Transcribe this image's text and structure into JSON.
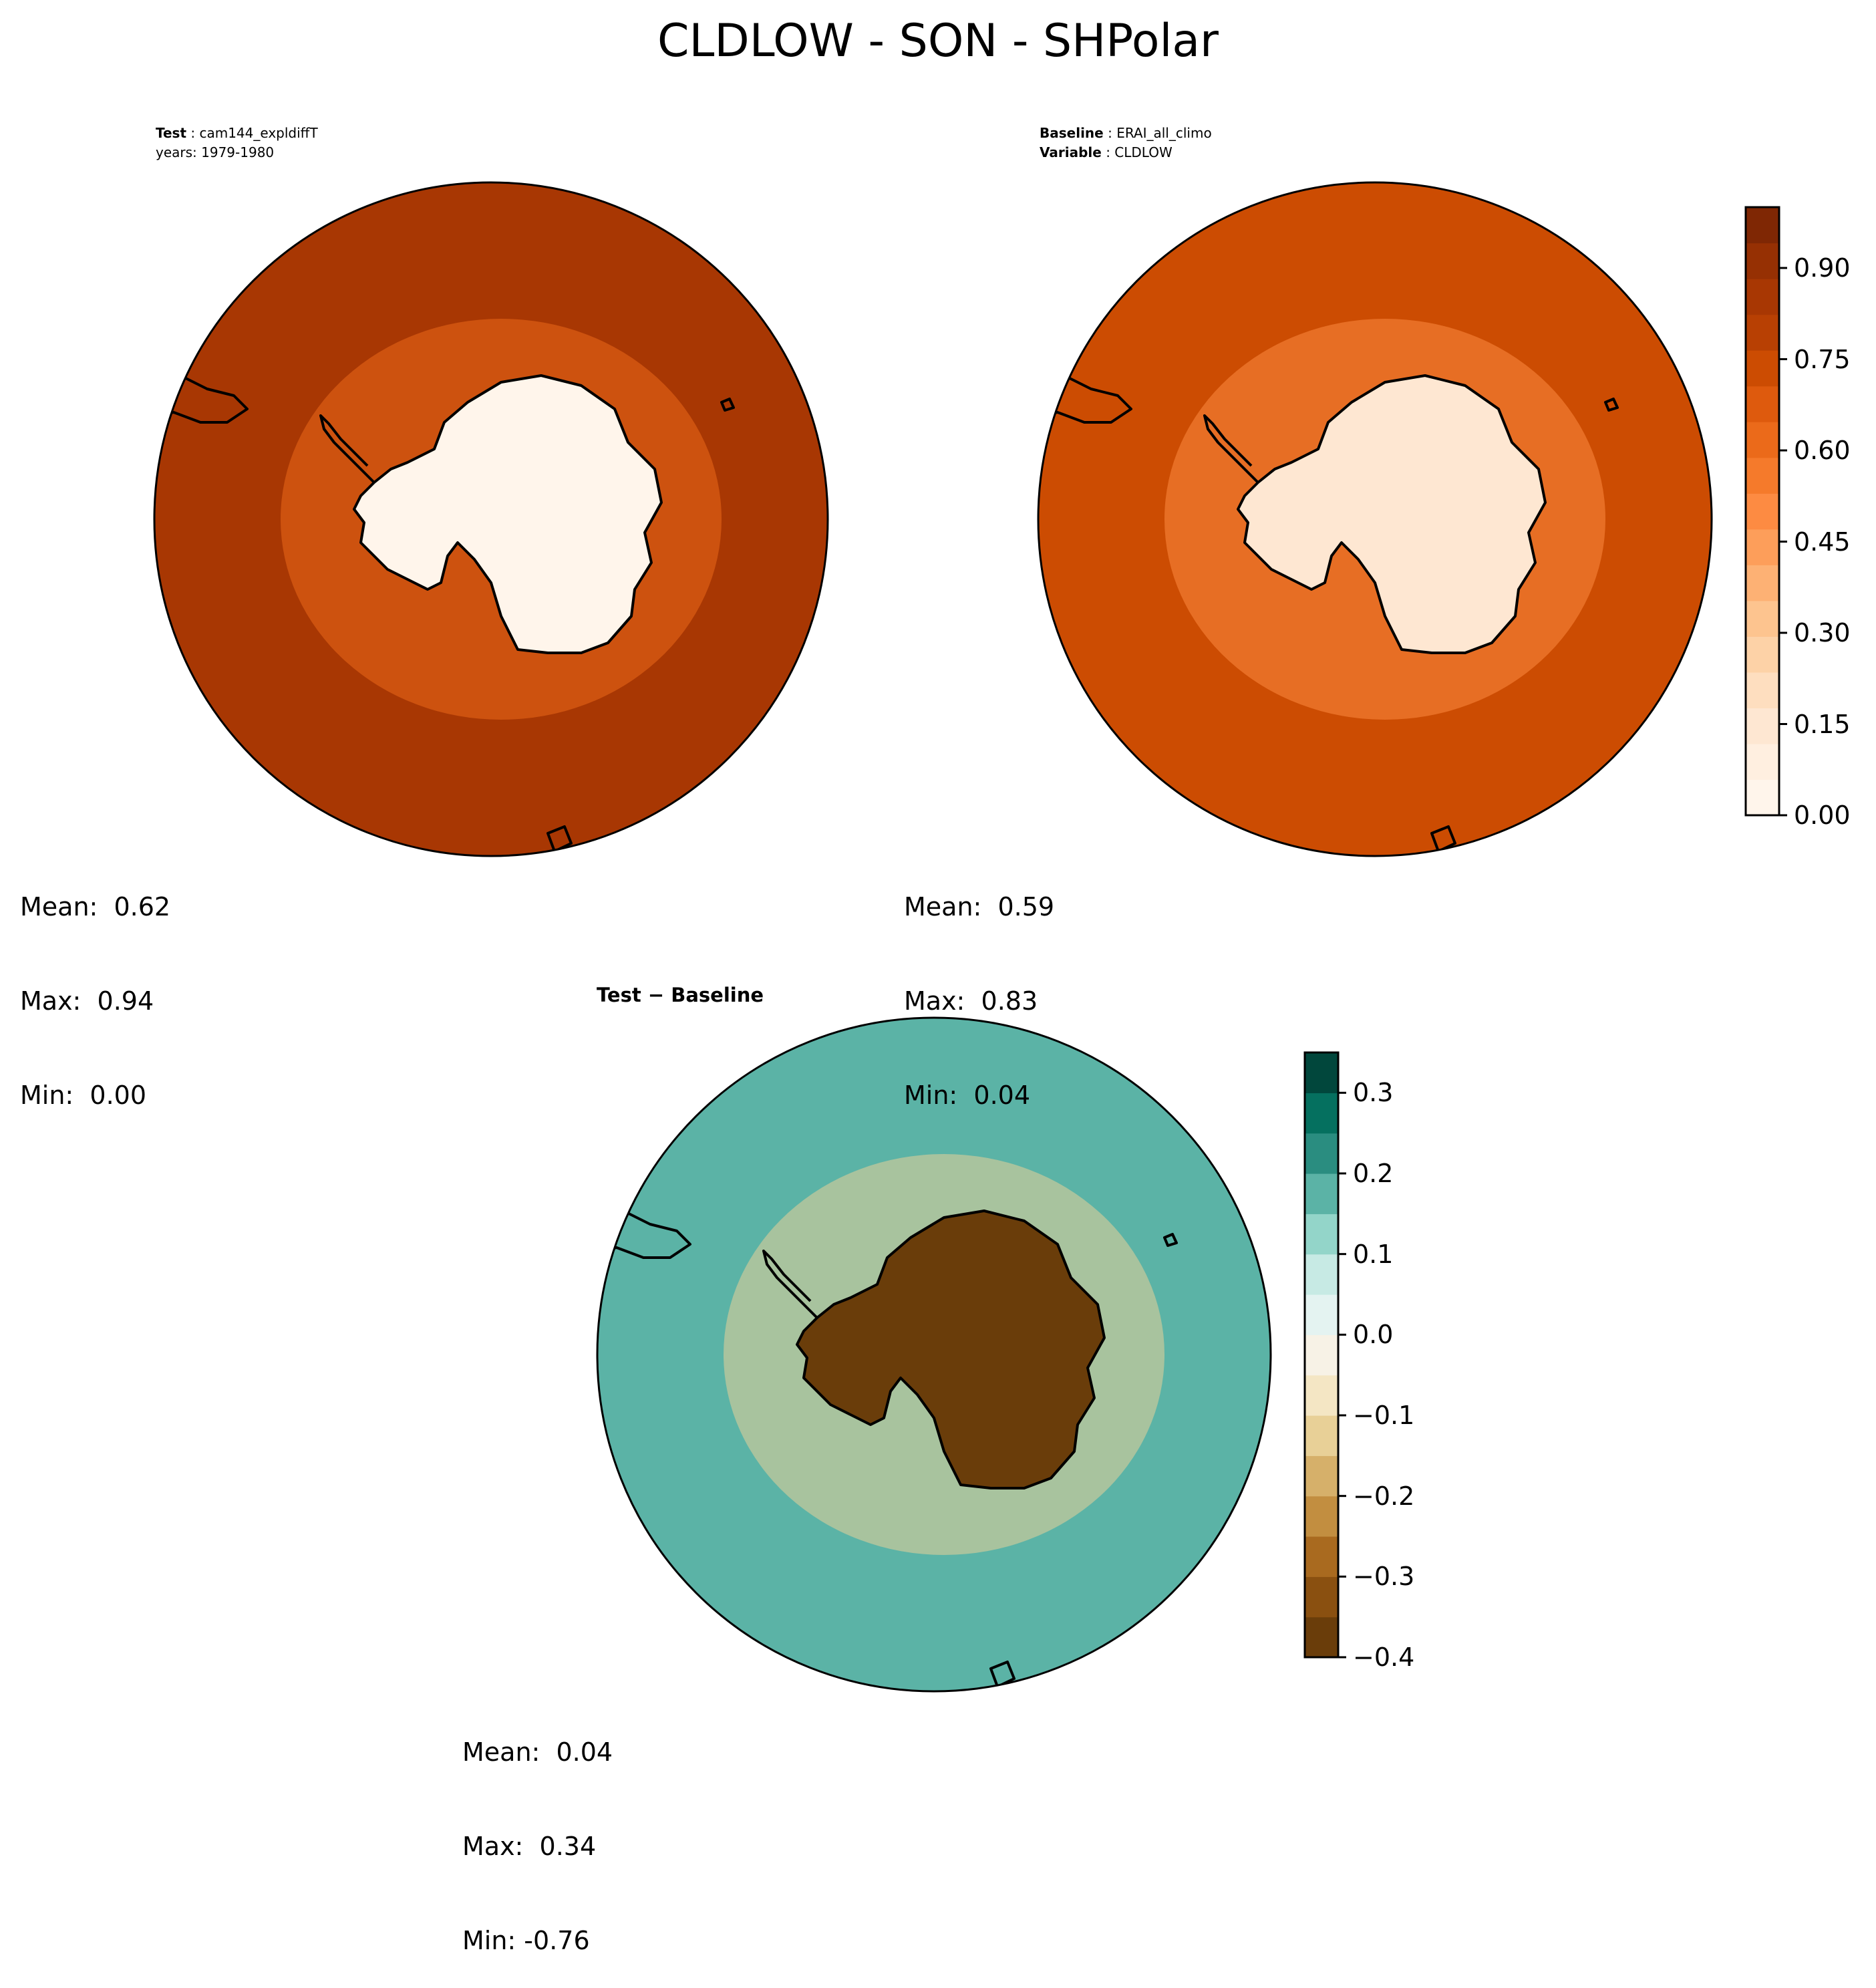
{
  "figure": {
    "title": "CLDLOW - SON - SHPolar"
  },
  "panels": {
    "test": {
      "label_bold": "Test",
      "label_value": "cam144_expldiffT",
      "line2": "years: 1979-1980",
      "stats": {
        "mean": "Mean:  0.62",
        "max": "Max:  0.94",
        "min": "Min:  0.00"
      },
      "field": {
        "ocean_level": 0.86,
        "land_level": 0.02,
        "ring_level": 0.6
      }
    },
    "baseline": {
      "label_bold": "Baseline",
      "label_value": "ERAI_all_climo",
      "line2_bold": "Variable",
      "line2_value": "CLDLOW",
      "stats": {
        "mean": "Mean:  0.59",
        "max": "Max:  0.83",
        "min": "Min:  0.04"
      },
      "field": {
        "ocean_level": 0.72,
        "land_level": 0.12,
        "ring_level": 0.5
      }
    },
    "difference": {
      "label": "Test − Baseline",
      "stats": {
        "mean": "Mean:  0.04",
        "max": "Max:  0.34",
        "min": "Min: -0.76"
      },
      "field": {
        "ocean_level": 0.15,
        "land_level": -0.76,
        "ring_level": -0.15
      }
    }
  },
  "colorbars": {
    "absolute": {
      "colormap": "Oranges",
      "range": [
        0,
        1
      ],
      "ticks": [
        "0.00",
        "0.15",
        "0.30",
        "0.45",
        "0.60",
        "0.75",
        "0.90"
      ],
      "tick_values": [
        0,
        0.15,
        0.3,
        0.45,
        0.6,
        0.75,
        0.9
      ],
      "colors": [
        "#fff5eb",
        "#ffefe0",
        "#fee7d2",
        "#fedebf",
        "#fdd2a7",
        "#fdc48f",
        "#fdb174",
        "#fd9e5a",
        "#fd8b42",
        "#f57a2b",
        "#eb6a1a",
        "#de5a0d",
        "#cc4c02",
        "#b84003",
        "#a83703",
        "#963003",
        "#7f2704"
      ]
    },
    "difference": {
      "colormap": "BrBG",
      "range": [
        -0.4,
        0.35
      ],
      "ticks": [
        "−0.4",
        "−0.3",
        "−0.2",
        "−0.1",
        "0.0",
        "0.1",
        "0.2",
        "0.3"
      ],
      "tick_values": [
        -0.4,
        -0.3,
        -0.2,
        -0.1,
        0,
        0.1,
        0.2,
        0.3
      ],
      "colors": [
        "#6a3d0a",
        "#8a5010",
        "#a96a1f",
        "#c28e40",
        "#d6b06a",
        "#e8d097",
        "#f4e6c4",
        "#f7f2e6",
        "#e4f3f1",
        "#c7eae4",
        "#93d5c9",
        "#5bb3a6",
        "#2a8d80",
        "#05705f",
        "#01473c"
      ]
    }
  }
}
